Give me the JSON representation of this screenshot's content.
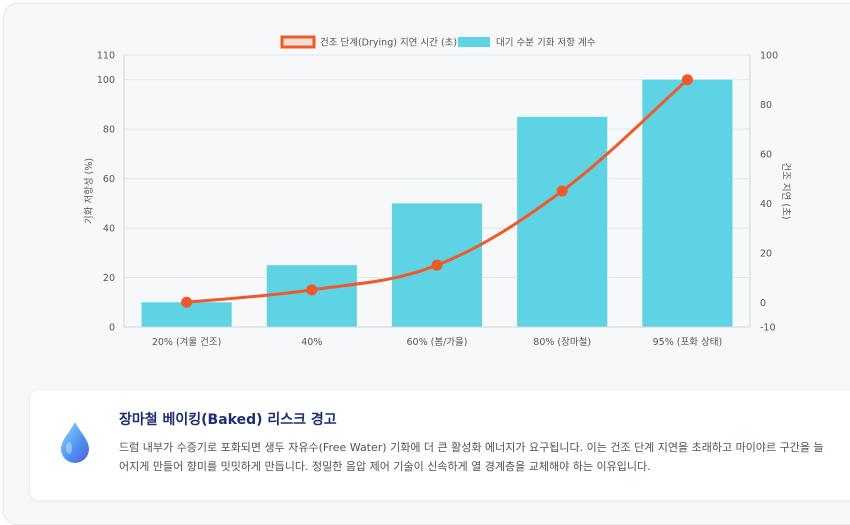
{
  "chart_data": {
    "type": "bar+line",
    "categories": [
      "20% (겨울 건조)",
      "40%",
      "60% (봄/가을)",
      "80% (장마철)",
      "95% (포화 상태)"
    ],
    "series": [
      {
        "name": "건조 단계(Drying) 지연 시간 (초)",
        "type": "line",
        "axis": "right",
        "values": [
          0,
          5,
          15,
          45,
          90
        ],
        "color": "#ee5a2a"
      },
      {
        "name": "대기 수분 기화 저항 계수",
        "type": "bar",
        "axis": "left",
        "values": [
          10,
          25,
          50,
          85,
          100
        ],
        "color": "#5dd3e3"
      }
    ],
    "ylabel": "기화 저항성 (%)",
    "y2label": "건조 지연 (초)",
    "ylim": [
      0,
      110
    ],
    "y2lim": [
      -10,
      100
    ],
    "yticks": [
      0,
      20,
      40,
      60,
      80,
      100,
      110
    ],
    "y2ticks": [
      -10,
      0,
      20,
      40,
      60,
      80,
      100
    ],
    "grid": true,
    "legend_position": "top-center"
  },
  "card": {
    "title": "장마철 베이킹(Baked) 리스크 경고",
    "body": "드럼 내부가 수증기로 포화되면 생두 자유수(Free Water) 기화에 더 큰 활성화 에너지가 요구됩니다. 이는 건조 단계 지연을 초래하고 마이야르 구간을 늘어지게 만들어 향미를 밋밋하게 만듭니다. 정밀한 음압 제어 기술이 신속하게 열 경계층을 교체해야 하는 이유입니다.",
    "icon": "water-drop-icon"
  }
}
